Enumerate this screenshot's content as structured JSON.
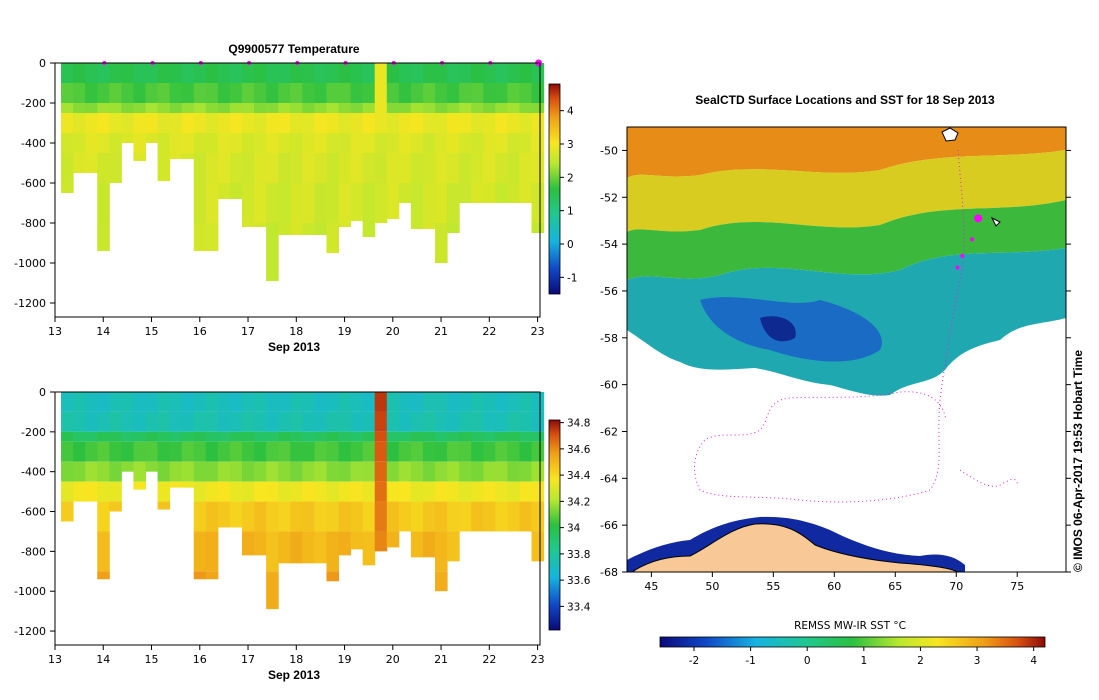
{
  "charts": {
    "temperature": {
      "type": "heatmap",
      "title": "Q9900577  Temperature",
      "xlabel": "Sep 2013",
      "xlim": [
        13,
        23.05
      ],
      "ylim": [
        -1270,
        0
      ],
      "xticks": [
        "13",
        "14",
        "15",
        "16",
        "17",
        "18",
        "19",
        "20",
        "21",
        "22",
        "23"
      ],
      "yticks": [
        "0",
        "-200",
        "-400",
        "-600",
        "-800",
        "-1000",
        "-1200"
      ],
      "ytick_values": [
        0,
        -200,
        -400,
        -600,
        -800,
        -1000,
        -1200
      ],
      "colorbar": {
        "range": [
          -1.5,
          4.8
        ],
        "ticks": [
          "-1",
          "0",
          "1",
          "2",
          "3",
          "4"
        ],
        "tick_values": [
          -1,
          0,
          1,
          2,
          3,
          4
        ]
      },
      "profile_days": [
        13.2,
        13.45,
        13.7,
        13.95,
        14.2,
        14.45,
        14.7,
        14.95,
        15.2,
        15.45,
        15.7,
        15.95,
        16.2,
        16.45,
        16.7,
        16.95,
        17.2,
        17.45,
        17.7,
        17.95,
        18.2,
        18.45,
        18.7,
        18.95,
        19.2,
        19.45,
        19.7,
        19.95,
        20.2,
        20.45,
        20.7,
        20.95,
        21.2,
        21.45,
        21.7,
        21.95,
        22.2,
        22.45,
        22.7,
        22.95
      ],
      "profile_max_depth": [
        650,
        550,
        550,
        940,
        600,
        400,
        490,
        400,
        590,
        480,
        480,
        940,
        940,
        680,
        680,
        820,
        820,
        1090,
        860,
        860,
        860,
        860,
        950,
        820,
        790,
        870,
        800,
        780,
        700,
        830,
        830,
        1000,
        850,
        700,
        700,
        700,
        700,
        700,
        700,
        850
      ],
      "layer_depths": [
        0,
        100,
        200,
        250,
        350,
        450,
        600,
        800,
        1100
      ],
      "layer_values": [
        1.5,
        1.8,
        2.2,
        2.9,
        2.75,
        2.7,
        2.65,
        2.6,
        2.55
      ],
      "warm_column_day": 19.6,
      "float_marker_days": [
        14,
        15,
        16,
        17,
        18,
        19,
        20,
        21,
        22,
        23
      ]
    },
    "salinity": {
      "type": "heatmap",
      "title": "",
      "xlabel": "Sep 2013",
      "xlim": [
        13,
        23.05
      ],
      "ylim": [
        -1270,
        0
      ],
      "xticks": [
        "13",
        "14",
        "15",
        "16",
        "17",
        "18",
        "19",
        "20",
        "21",
        "22",
        "23"
      ],
      "yticks": [
        "0",
        "-200",
        "-400",
        "-600",
        "-800",
        "-1000",
        "-1200"
      ],
      "ytick_values": [
        0,
        -200,
        -400,
        -600,
        -800,
        -1000,
        -1200
      ],
      "colorbar": {
        "range": [
          33.22,
          34.82
        ],
        "ticks": [
          "33.4",
          "33.6",
          "33.8",
          "34",
          "34.2",
          "34.4",
          "34.6",
          "34.8"
        ],
        "tick_values": [
          33.4,
          33.6,
          33.8,
          34,
          34.2,
          34.4,
          34.6,
          34.8
        ]
      },
      "layer_depths": [
        0,
        100,
        200,
        250,
        350,
        450,
        550,
        700,
        900
      ],
      "layer_values": [
        33.72,
        33.74,
        33.95,
        34.05,
        34.15,
        34.35,
        34.45,
        34.5,
        34.55
      ],
      "anomaly_column_day": 19.6,
      "anomaly_value": 34.75
    },
    "map": {
      "type": "heatmap",
      "title": "SealCTD Surface Locations and SST for 18 Sep 2013",
      "xlim": [
        43,
        79
      ],
      "ylim": [
        -68,
        -49
      ],
      "xticks": [
        "45",
        "50",
        "55",
        "60",
        "65",
        "70",
        "75"
      ],
      "xtick_values": [
        45,
        50,
        55,
        60,
        65,
        70,
        75
      ],
      "yticks": [
        "-50",
        "-52",
        "-54",
        "-56",
        "-58",
        "-60",
        "-62",
        "-64",
        "-66",
        "-68"
      ],
      "ytick_values": [
        -50,
        -52,
        -54,
        -56,
        -58,
        -60,
        -62,
        -64,
        -66,
        -68
      ],
      "side_label": "© IMOS 06-Apr-2017 19:53 Hobart Time",
      "colorbar_title": "REMSS MW-IR SST °C",
      "colorbar": {
        "range": [
          -2.6,
          4.2
        ],
        "ticks": [
          "-2",
          "-1",
          "0",
          "1",
          "2",
          "3",
          "4"
        ],
        "tick_values": [
          -2,
          -1,
          0,
          1,
          2,
          3,
          4
        ]
      },
      "seal_positions": [
        [
          71.8,
          -52.9
        ],
        [
          71.3,
          -53.8
        ],
        [
          70.5,
          -54.5
        ],
        [
          70.1,
          -55.0
        ]
      ]
    }
  },
  "palette": {
    "ice_shelf": "#f8c896",
    "marker": "#ff00ff",
    "background": "#ffffff"
  }
}
